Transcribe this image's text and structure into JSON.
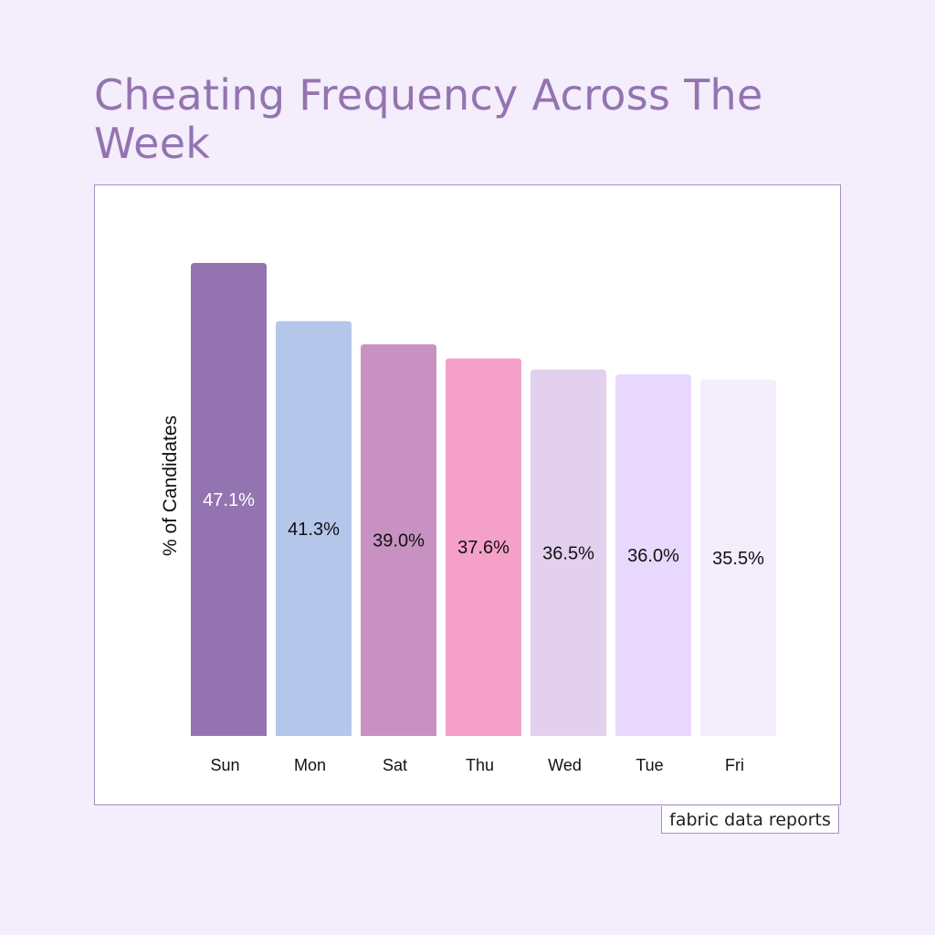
{
  "page": {
    "title": "Cheating Frequency Across The Week",
    "credit": "fabric data reports",
    "background": "#f3edfc",
    "title_color": "#9474b0"
  },
  "chart_data": {
    "type": "bar",
    "ylabel": "% of Candidates",
    "xlabel": "",
    "categories": [
      "Sun",
      "Mon",
      "Sat",
      "Thu",
      "Wed",
      "Tue",
      "Fri"
    ],
    "values": [
      47.1,
      41.3,
      39.0,
      37.6,
      36.5,
      36.0,
      35.5
    ],
    "value_labels": [
      "47.1%",
      "41.3%",
      "39.0%",
      "37.6%",
      "36.5%",
      "36.0%",
      "35.5%"
    ],
    "colors": [
      "#9474b0",
      "#b4c6ea",
      "#c792c2",
      "#f5a0c8",
      "#e3d0ee",
      "#e8d8fd",
      "#f3edfc"
    ],
    "label_colors": [
      "#ffffff",
      "#111111",
      "#111111",
      "#111111",
      "#111111",
      "#111111",
      "#111111"
    ],
    "ylim": [
      0,
      47.1
    ],
    "grid": false,
    "legend": "none"
  }
}
